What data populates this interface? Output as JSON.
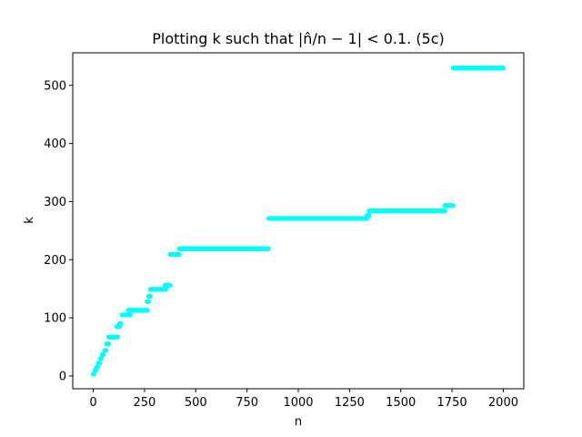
{
  "chart_data": {
    "type": "scatter",
    "title": "Plotting k such that |n̂/n − 1| < 0.1. (5c)",
    "xlabel": "n",
    "ylabel": "k",
    "xlim": [
      -100,
      2100
    ],
    "ylim": [
      -22,
      556
    ],
    "x_ticks": [
      0,
      250,
      500,
      750,
      1000,
      1250,
      1500,
      1750,
      2000
    ],
    "y_ticks": [
      0,
      100,
      200,
      300,
      400,
      500
    ],
    "grid": false,
    "legend": "none",
    "marker_color": "#00ffff",
    "segments": [
      {
        "x_start": 0,
        "x_end": 5,
        "k": 3
      },
      {
        "x_start": 8,
        "x_end": 14,
        "k": 10
      },
      {
        "x_start": 16,
        "x_end": 22,
        "k": 15
      },
      {
        "x_start": 25,
        "x_end": 32,
        "k": 22
      },
      {
        "x_start": 35,
        "x_end": 40,
        "k": 30
      },
      {
        "x_start": 44,
        "x_end": 50,
        "k": 37
      },
      {
        "x_start": 55,
        "x_end": 62,
        "k": 44
      },
      {
        "x_start": 65,
        "x_end": 75,
        "k": 55
      },
      {
        "x_start": 75,
        "x_end": 120,
        "k": 67
      },
      {
        "x_start": 115,
        "x_end": 130,
        "k": 85
      },
      {
        "x_start": 128,
        "x_end": 135,
        "k": 90
      },
      {
        "x_start": 140,
        "x_end": 180,
        "k": 105
      },
      {
        "x_start": 170,
        "x_end": 265,
        "k": 113
      },
      {
        "x_start": 262,
        "x_end": 270,
        "k": 128
      },
      {
        "x_start": 270,
        "x_end": 278,
        "k": 137
      },
      {
        "x_start": 278,
        "x_end": 355,
        "k": 149
      },
      {
        "x_start": 350,
        "x_end": 375,
        "k": 156
      },
      {
        "x_start": 375,
        "x_end": 420,
        "k": 209
      },
      {
        "x_start": 420,
        "x_end": 855,
        "k": 219
      },
      {
        "x_start": 855,
        "x_end": 1335,
        "k": 271
      },
      {
        "x_start": 1335,
        "x_end": 1345,
        "k": 276
      },
      {
        "x_start": 1345,
        "x_end": 1715,
        "k": 284
      },
      {
        "x_start": 1715,
        "x_end": 1755,
        "k": 293
      },
      {
        "x_start": 1755,
        "x_end": 2000,
        "k": 530
      }
    ]
  }
}
